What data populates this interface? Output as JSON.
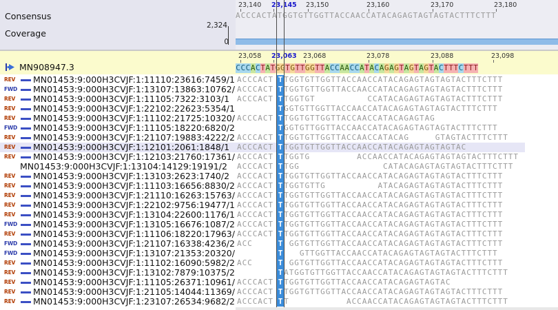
{
  "consensus": {
    "label": "Consensus"
  },
  "coverage": {
    "label": "Coverage",
    "max": "2,324",
    "min": "0"
  },
  "top_ruler": [
    "23,140",
    "23,145",
    "23,150",
    "23,160",
    "23,170",
    "23,180"
  ],
  "ref_ruler": [
    "23,058",
    "23,063",
    "23,068",
    "23,078",
    "23,088",
    "23,098"
  ],
  "highlight_position": "23,145",
  "highlight_ref_position": "23,063",
  "consensus_seq": "ACCCACTATGGTGTTGGTTACCAACCATACAGAGTAGTAGTACTTTCTTT",
  "reference": {
    "name": "MN908947.3",
    "seq": "CCCACTATGGTGTTGGTTACCAACCATACAGAGTAGTAGTACTTTCTTT"
  },
  "cursor_base": "A",
  "reads": [
    {
      "dir": "REV",
      "name": "MN01453:9:000H3CVJF:1:11110:23616:7459/1",
      "seq": "ACCCACT ATGGTGTTGGTTACCAACCATACAGAGTAGTAGTACTTTCTTT"
    },
    {
      "dir": "FWD",
      "name": "MN01453:9:000H3CVJF:1:13107:13863:10762/2",
      "seq": "ACCCACT ATGGTGTTGGTTACCAACCATACAGAGTAGTAGTACTTTCTTT"
    },
    {
      "dir": "REV",
      "name": "MN01453:9:000H3CVJF:1:11105:7322:3103/1",
      "seq": "ACCCACT ATGGTGT          CCATACAGAGTAGTAGTACTTTCTTT"
    },
    {
      "dir": "REV",
      "name": "MN01453:9:000H3CVJF:1:22102:22623:5354/1",
      "seq": "         GGTGTTGGTTACCAACCATACAGAGTAGTAGTACTTTCTTT"
    },
    {
      "dir": "REV",
      "name": "MN01453:9:000H3CVJF:1:11102:21725:10320/1",
      "seq": "ACCCACT ATGGTGTTGGTTACCAACCATACAGAGTAG"
    },
    {
      "dir": "FWD",
      "name": "MN01453:9:000H3CVJF:1:11105:18220:6820/2",
      "seq": "         GGTGTTGGTTACCAACCATACAGAGTAGTAGTACTTTCTTT"
    },
    {
      "dir": "REV",
      "name": "MN01453:9:000H3CVJF:1:21107:19883:4222/2",
      "seq": "ACCCACT ATGGTGTTGGTTACCAACCATACAG     GTAGTACTTTCTTT"
    },
    {
      "dir": "REV",
      "name": "MN01453:9:000H3CVJF:1:12101:2061:1848/1",
      "seq": "ACCCACT ATGGTGTTGGTTACCAACCATACAGAGTAGTAGTAC",
      "selected": true
    },
    {
      "dir": "REV",
      "name": "MN01453:9:000H3CVJF:1:12103:21760:17361/2",
      "seq": "ACCCACT ATGGTG         ACCAACCATACAGAGTAGTAGTACTTTCTTT"
    },
    {
      "dir": "",
      "name": "MN01453:9:000H3CVJF:1:13104:14129:19191/2",
      "seq": "ACCCACT ATGG                CATACAGAGTAGTAGTACTTTCTTT"
    },
    {
      "dir": "REV",
      "name": "MN01453:9:000H3CVJF:1:13103:2623:1740/2",
      "seq": "ACCCACT ATGGTGTTGGTTACCAACCATACAGAGTAGTAGTACTTTCTTT"
    },
    {
      "dir": "REV",
      "name": "MN01453:9:000H3CVJF:1:11103:16656:8830/2",
      "seq": "ACCCACT ATGGTGTTG          ATACAGAGTAGTAGTACTTTCTTT"
    },
    {
      "dir": "REV",
      "name": "MN01453:9:000H3CVJF:1:21110:16263:15763/2",
      "seq": "ACCCACT ATGGTGTTGGTTACCAACCATACAGAGTAGTAGTACTTTCTTT"
    },
    {
      "dir": "REV",
      "name": "MN01453:9:000H3CVJF:1:22102:9756:19477/1",
      "seq": "ACCCACT ATGGTGTTGGTTACCAACCATACAGAGTAGTAGTACTTTCTTT"
    },
    {
      "dir": "REV",
      "name": "MN01453:9:000H3CVJF:1:13104:22600:1176/1",
      "seq": "ACCCACT ATGGTGTTGGTTACCAACCATACAGAGTAGTAGTACTTTCTTT"
    },
    {
      "dir": "FWD",
      "name": "MN01453:9:000H3CVJF:1:13105:16676:1087/2",
      "seq": "ACCCACT ATGGTGTTGGTTACCAACCATACAGAGTAGTAGTACTTTCTTT"
    },
    {
      "dir": "REV",
      "name": "MN01453:9:000H3CVJF:1:11106:18220:17963/1",
      "seq": "ACCCACT ATGGTGTTGGTTACCAACCATACAGAGTAGTAGTACTTTCTTT"
    },
    {
      "dir": "FWD",
      "name": "MN01453:9:000H3CVJF:1:21107:16338:4236/2",
      "seq": "ACC       GGTGTTGGTTACCAACCATACAGAGTAGTAGTACTTTCTTT"
    },
    {
      "dir": "FWD",
      "name": "MN01453:9:000H3CVJF:1:13107:21353:20320/1",
      "seq": "            GTTGGTTACCAACCATACAGAGTAGTAGTACTTTCTTT"
    },
    {
      "dir": "REV",
      "name": "MN01453:9:000H3CVJF:1:11102:16090:5982/2",
      "seq": "ACC       GGTGTTGGTTACCAACCATACAGAGTAGTAGTACTTTCTTT"
    },
    {
      "dir": "REV",
      "name": "MN01453:9:000H3CVJF:1:13102:7879:10375/2",
      "seq": "         ATGGTGTTGGTTACCAACCATACAGAGTAGTAGTACTTTCTTT"
    },
    {
      "dir": "REV",
      "name": "MN01453:9:000H3CVJF:1:11105:26371:10961/1",
      "seq": "ACCCACT ATGGTGTTGGTTACCAACCATACAGAGTAGTAC"
    },
    {
      "dir": "REV",
      "name": "MN01453:9:000H3CVJF:1:21105:14044:11369/1",
      "seq": "ACCCACT ATGGTGTTGGTTACCAACCATACAGAGTAGTAGTACTTTCTTT"
    },
    {
      "dir": "REV",
      "name": "MN01453:9:000H3CVJF:1:23107:26534:9682/2",
      "seq": "ACCCACT AT           ACCAACCATACAGAGTAGTAGTACTTTCTTT"
    }
  ],
  "colors": {
    "coverage": "#8fbce8",
    "reference_bg": "#fbfbcd",
    "match_highlight": "#3b8ddb",
    "rev": "#b03a00",
    "fwd": "#2a3aaa"
  }
}
